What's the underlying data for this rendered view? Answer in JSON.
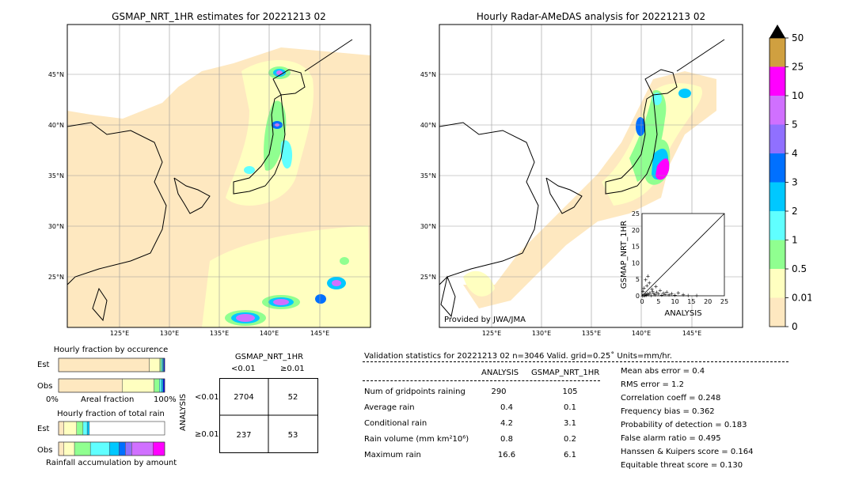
{
  "left_map": {
    "title": "GSMAP_NRT_1HR estimates for 20221213 02",
    "lat_labels": [
      "45°N",
      "40°N",
      "35°N",
      "30°N",
      "25°N"
    ],
    "lon_labels": [
      "125°E",
      "130°E",
      "135°E",
      "140°E",
      "145°E"
    ]
  },
  "right_map": {
    "title": "Hourly Radar-AMeDAS analysis for 20221213 02",
    "lat_labels": [
      "45°N",
      "40°N",
      "35°N",
      "30°N",
      "25°N"
    ],
    "lon_labels": [
      "125°E",
      "130°E",
      "135°E",
      "140°E",
      "145°E"
    ],
    "provided_by": "Provided by JWA/JMA"
  },
  "colorbar": {
    "levels": [
      "0",
      "0.01",
      "0.5",
      "1",
      "2",
      "3",
      "4",
      "5",
      "10",
      "25",
      "50"
    ],
    "colors": [
      "#fee8c0",
      "#ffffc0",
      "#90ff90",
      "#60ffff",
      "#00c8ff",
      "#0070ff",
      "#9070ff",
      "#d070ff",
      "#ff00ff",
      "#d0a040"
    ],
    "extend_color": "#000000"
  },
  "scatter": {
    "ylabel": "GSMAP_NRT_1HR",
    "xlabel": "ANALYSIS",
    "ticks": [
      "0",
      "5",
      "10",
      "15",
      "20",
      "25"
    ]
  },
  "fraction_occurrence": {
    "title": "Hourly fraction by occurence",
    "row_labels": [
      "Est",
      "Obs"
    ],
    "xlabel": "Areal fraction",
    "left_tick": "0%",
    "right_tick": "100%"
  },
  "fraction_total": {
    "title": "Hourly fraction of total rain",
    "row_labels": [
      "Est",
      "Obs"
    ],
    "xlabel": "Rainfall accumulation by amount"
  },
  "contingency": {
    "title": "GSMAP_NRT_1HR",
    "col_labels": [
      "<0.01",
      "≥0.01"
    ],
    "row_labels": [
      "<0.01",
      "≥0.01"
    ],
    "side_label": "ANALYSIS",
    "cells": [
      [
        "2704",
        "52"
      ],
      [
        "237",
        "53"
      ]
    ]
  },
  "validation": {
    "header": "Validation statistics for 20221213 02  n=3046 Valid. grid=0.25˚ Units=mm/hr.",
    "col_analysis": "ANALYSIS",
    "col_gsmap": "GSMAP_NRT_1HR",
    "rows": [
      {
        "label": "Num of gridpoints raining",
        "analysis": "290",
        "gsmap": "105"
      },
      {
        "label": "Average rain",
        "analysis": "0.4",
        "gsmap": "0.1"
      },
      {
        "label": "Conditional rain",
        "analysis": "4.2",
        "gsmap": "3.1"
      },
      {
        "label": "Rain volume (mm km²10⁶)",
        "analysis": "0.8",
        "gsmap": "0.2"
      },
      {
        "label": "Maximum rain",
        "analysis": "16.6",
        "gsmap": "6.1"
      }
    ],
    "scores": [
      "Mean abs error =    0.4",
      "RMS error =    1.2",
      "Correlation coeff =  0.248",
      "Frequency bias =  0.362",
      "Probability of detection =  0.183",
      "False alarm ratio =  0.495",
      "Hanssen & Kuipers score =  0.164",
      "Equitable threat score =  0.130"
    ]
  },
  "chart_data": [
    {
      "type": "scatter",
      "xlabel": "ANALYSIS",
      "ylabel": "GSMAP_NRT_1HR",
      "xlim": [
        0,
        25
      ],
      "ylim": [
        0,
        25
      ],
      "points": [
        [
          0.2,
          0.1
        ],
        [
          0.5,
          0.3
        ],
        [
          0.8,
          0.2
        ],
        [
          1.0,
          0.5
        ],
        [
          1.3,
          0.4
        ],
        [
          1.6,
          0.8
        ],
        [
          2.0,
          0.6
        ],
        [
          2.4,
          1.1
        ],
        [
          2.8,
          0.3
        ],
        [
          3.2,
          1.5
        ],
        [
          3.6,
          0.9
        ],
        [
          4.0,
          0.5
        ],
        [
          4.5,
          1.2
        ],
        [
          5.0,
          0.7
        ],
        [
          5.5,
          1.8
        ],
        [
          6.0,
          0.4
        ],
        [
          6.5,
          1.0
        ],
        [
          7.0,
          0.6
        ],
        [
          7.5,
          1.3
        ],
        [
          8.2,
          0.5
        ],
        [
          9.0,
          0.9
        ],
        [
          10.0,
          0.4
        ],
        [
          11.0,
          1.1
        ],
        [
          12.5,
          0.5
        ],
        [
          14.0,
          0.3
        ],
        [
          16.6,
          0.2
        ],
        [
          1.5,
          3.2
        ],
        [
          2.2,
          4.1
        ],
        [
          0.6,
          2.5
        ],
        [
          1.1,
          5.0
        ],
        [
          1.8,
          6.1
        ],
        [
          3.0,
          2.2
        ],
        [
          0.3,
          1.6
        ],
        [
          4.2,
          3.0
        ]
      ]
    },
    {
      "type": "bar",
      "title": "Hourly fraction by occurence",
      "categories": [
        "Est",
        "Obs"
      ],
      "series": [
        {
          "values": [
            0.855,
            0.6
          ]
        },
        {
          "values": [
            0.1,
            0.3
          ]
        },
        {
          "values": [
            0.015,
            0.05
          ]
        },
        {
          "values": [
            0.01,
            0.02
          ]
        },
        {
          "values": [
            0.01,
            0.015
          ]
        },
        {
          "values": [
            0.01,
            0.015
          ]
        }
      ]
    },
    {
      "type": "bar",
      "title": "Hourly fraction of total rain",
      "categories": [
        "Est",
        "Obs"
      ],
      "series": [
        {
          "values": [
            0.05,
            0.05
          ]
        },
        {
          "values": [
            0.12,
            0.1
          ]
        },
        {
          "values": [
            0.06,
            0.15
          ]
        },
        {
          "values": [
            0.04,
            0.18
          ]
        },
        {
          "values": [
            0.02,
            0.09
          ]
        },
        {
          "values": [
            0.0,
            0.06
          ]
        },
        {
          "values": [
            0.0,
            0.06
          ]
        },
        {
          "values": [
            0.0,
            0.2
          ]
        },
        {
          "values": [
            0.0,
            0.11
          ]
        }
      ]
    }
  ]
}
